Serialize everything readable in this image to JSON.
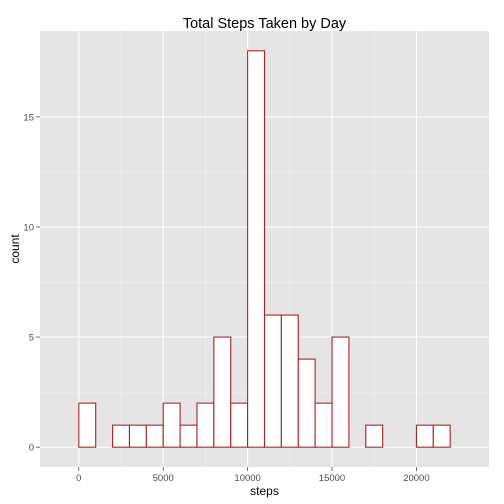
{
  "chart_data": {
    "type": "bar",
    "title": "Total Steps Taken by Day",
    "xlabel": "steps",
    "ylabel": "count",
    "bin_width": 1000,
    "bins": [
      {
        "start": -1000,
        "end": 0,
        "count": 0
      },
      {
        "start": 0,
        "end": 1000,
        "count": 2
      },
      {
        "start": 1000,
        "end": 2000,
        "count": 0
      },
      {
        "start": 2000,
        "end": 3000,
        "count": 1
      },
      {
        "start": 3000,
        "end": 4000,
        "count": 1
      },
      {
        "start": 4000,
        "end": 5000,
        "count": 1
      },
      {
        "start": 5000,
        "end": 6000,
        "count": 2
      },
      {
        "start": 6000,
        "end": 7000,
        "count": 1
      },
      {
        "start": 7000,
        "end": 8000,
        "count": 2
      },
      {
        "start": 8000,
        "end": 9000,
        "count": 5
      },
      {
        "start": 9000,
        "end": 10000,
        "count": 2
      },
      {
        "start": 10000,
        "end": 11000,
        "count": 18
      },
      {
        "start": 11000,
        "end": 12000,
        "count": 6
      },
      {
        "start": 12000,
        "end": 13000,
        "count": 6
      },
      {
        "start": 13000,
        "end": 14000,
        "count": 4
      },
      {
        "start": 14000,
        "end": 15000,
        "count": 2
      },
      {
        "start": 15000,
        "end": 16000,
        "count": 5
      },
      {
        "start": 16000,
        "end": 17000,
        "count": 0
      },
      {
        "start": 17000,
        "end": 18000,
        "count": 1
      },
      {
        "start": 18000,
        "end": 19000,
        "count": 0
      },
      {
        "start": 19000,
        "end": 20000,
        "count": 0
      },
      {
        "start": 20000,
        "end": 21000,
        "count": 1
      },
      {
        "start": 21000,
        "end": 22000,
        "count": 1
      },
      {
        "start": 22000,
        "end": 23000,
        "count": 0
      }
    ],
    "xlim": [
      -2300,
      24300
    ],
    "ylim": [
      -0.9,
      18.9
    ],
    "x_ticks": [
      0,
      5000,
      10000,
      15000,
      20000
    ],
    "x_tick_labels": [
      "0",
      "5000",
      "10000",
      "15000",
      "20000"
    ],
    "y_ticks": [
      0,
      5,
      10,
      15
    ],
    "y_tick_labels": [
      "0",
      "5",
      "10",
      "15"
    ],
    "grid": true,
    "legend": "none",
    "colors": {
      "panel_background": "#e5e5e5",
      "grid_major": "#ffffff",
      "grid_minor": "#f2f2f2",
      "bar_fill": "#ffffff",
      "bar_outline": "#b22222",
      "tick_text": "#4d4d4d"
    }
  }
}
